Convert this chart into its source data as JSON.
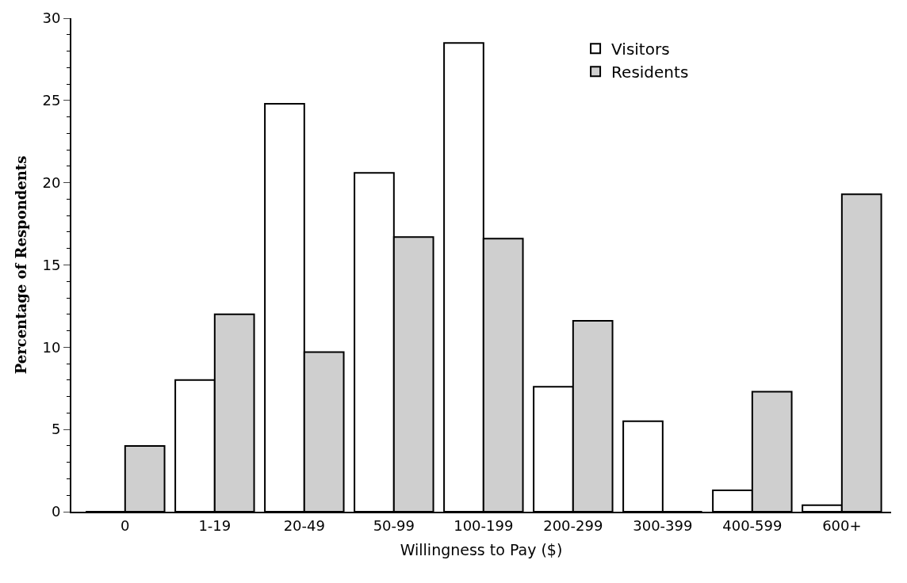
{
  "chart_data": {
    "type": "bar",
    "xlabel": "Willingness to Pay ($)",
    "ylabel": "Percentage of Respondents",
    "categories": [
      "0",
      "1-19",
      "20-49",
      "50-99",
      "100-199",
      "200-299",
      "300-399",
      "400-599",
      "600+"
    ],
    "series": [
      {
        "name": "Visitors",
        "color": "#ffffff",
        "values": [
          0,
          8,
          24.8,
          20.6,
          28.5,
          7.6,
          5.5,
          1.3,
          0.4
        ]
      },
      {
        "name": "Residents",
        "color": "#cfcfcf",
        "values": [
          4,
          12,
          9.7,
          16.7,
          16.6,
          11.6,
          0,
          7.3,
          19.3
        ]
      }
    ],
    "ylim": [
      0,
      30
    ],
    "yticks": [
      0,
      5,
      10,
      15,
      20,
      25,
      30
    ],
    "grid": false,
    "legend": "top right"
  }
}
